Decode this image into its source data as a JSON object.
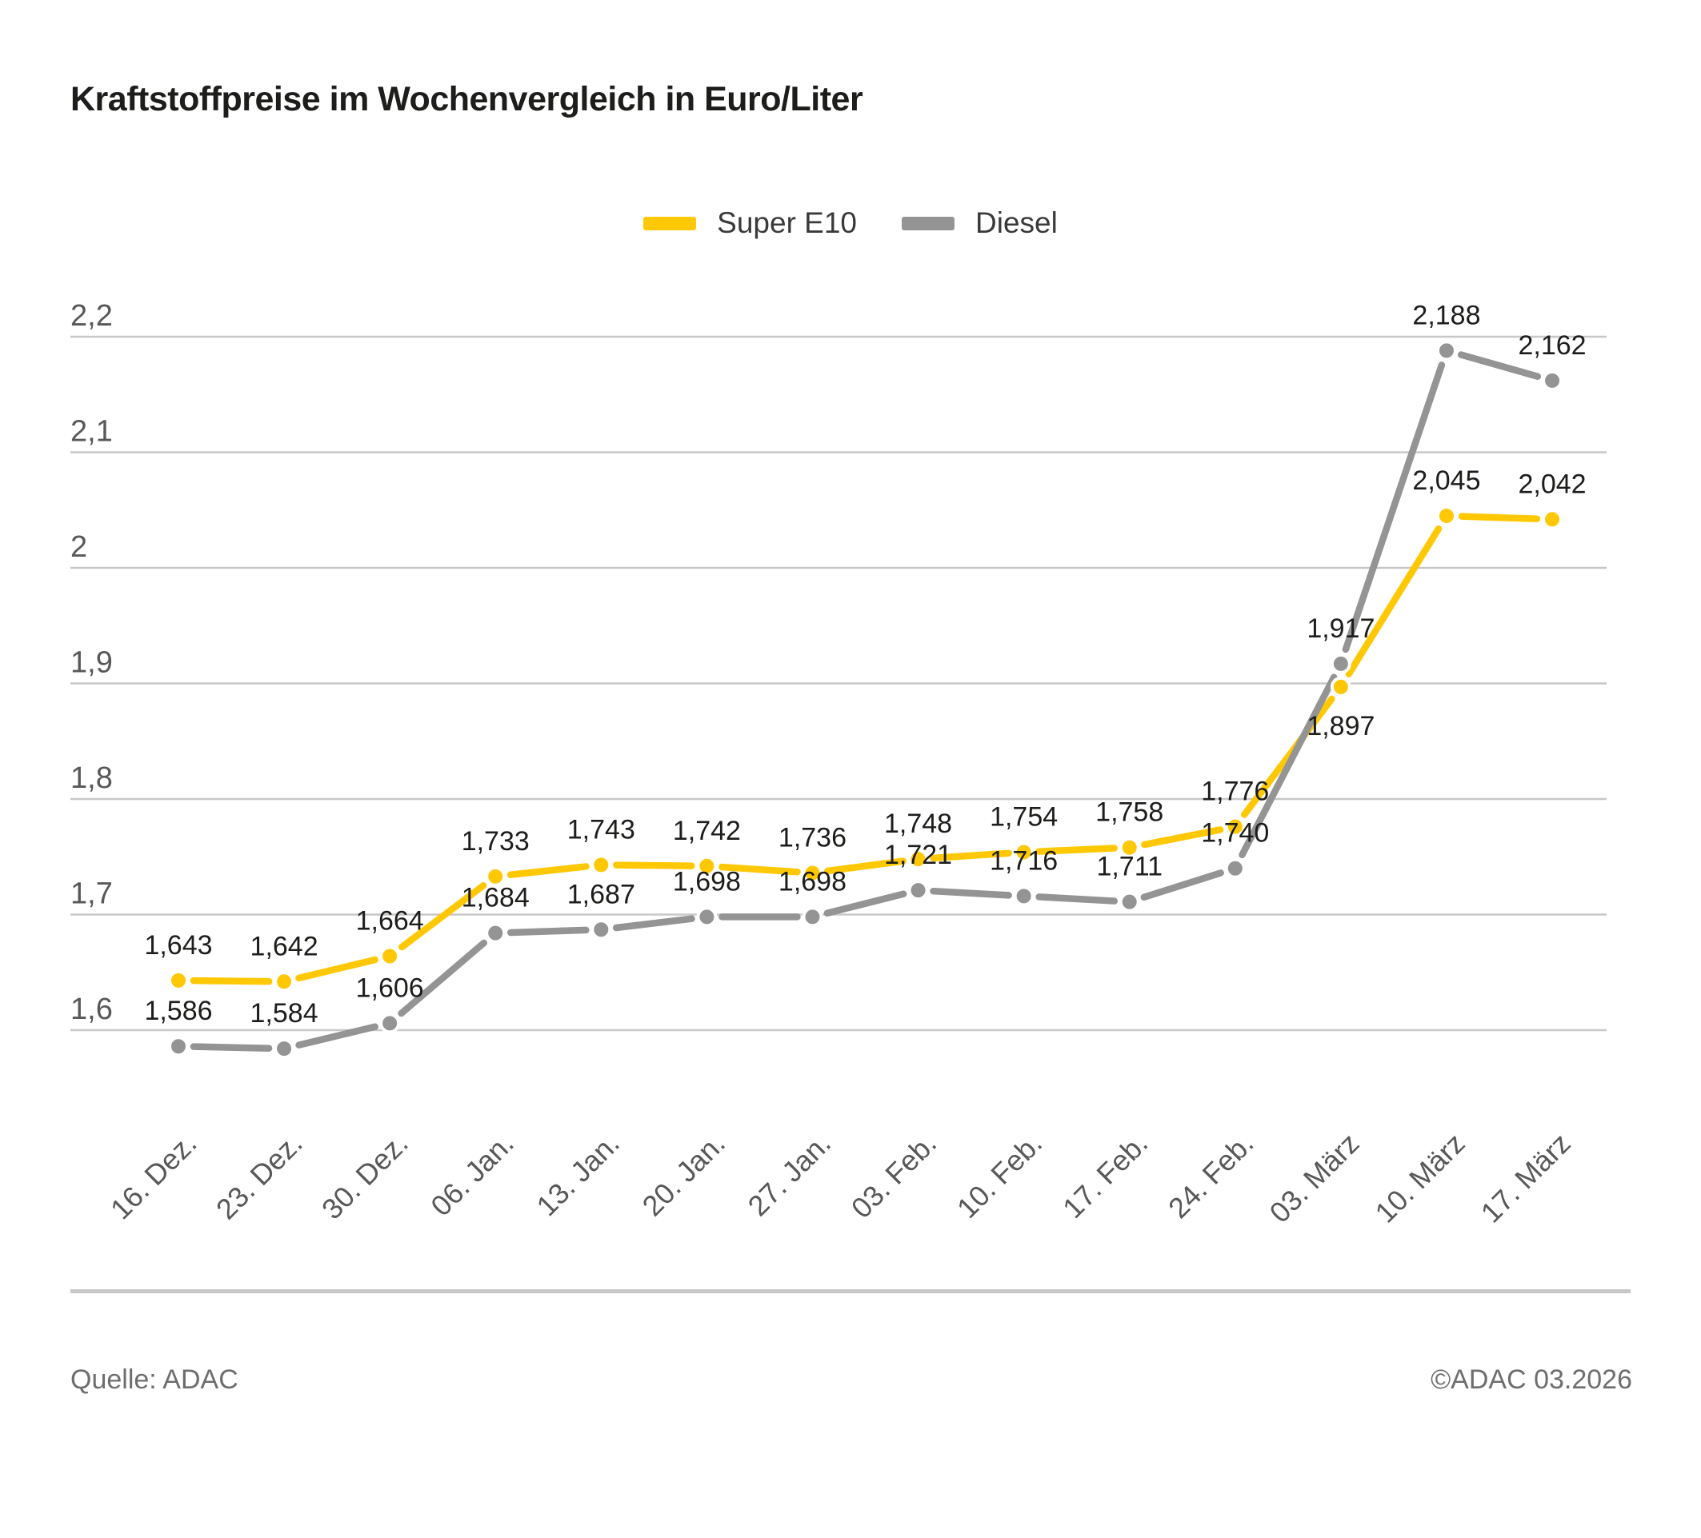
{
  "title": "Kraftstoffpreise im Wochenvergleich in Euro/Liter",
  "footer": {
    "source": "Quelle: ADAC",
    "copyright": "©ADAC 03.2026"
  },
  "chart_data": {
    "type": "line",
    "title": "Kraftstoffpreise im Wochenvergleich in Euro/Liter",
    "categories": [
      "16. Dez.",
      "23. Dez.",
      "30. Dez.",
      "06. Jan.",
      "13. Jan.",
      "20. Jan.",
      "27. Jan.",
      "03. Feb.",
      "10. Feb.",
      "17. Feb.",
      "24. Feb.",
      "03. März",
      "10. März",
      "17. März"
    ],
    "series": [
      {
        "name": "Super E10",
        "color": "#FFC805",
        "values": [
          1.643,
          1.642,
          1.664,
          1.733,
          1.743,
          1.742,
          1.736,
          1.748,
          1.754,
          1.758,
          1.776,
          1.897,
          2.045,
          2.042
        ],
        "labels": [
          "1,643",
          "1,642",
          "1,664",
          "1,733",
          "1,743",
          "1,742",
          "1,736",
          "1,748",
          "1,754",
          "1,758",
          "1,776",
          "1,897",
          "2,045",
          "2,042"
        ],
        "label_side": [
          "above",
          "above",
          "above",
          "above",
          "above",
          "above",
          "above",
          "above",
          "above",
          "above",
          "above",
          "below",
          "above",
          "above"
        ]
      },
      {
        "name": "Diesel",
        "color": "#949494",
        "values": [
          1.586,
          1.584,
          1.606,
          1.684,
          1.687,
          1.698,
          1.698,
          1.721,
          1.716,
          1.711,
          1.74,
          1.917,
          2.188,
          2.162
        ],
        "labels": [
          "1,586",
          "1,584",
          "1,606",
          "1,684",
          "1,687",
          "1,698",
          "1,698",
          "1,721",
          "1,716",
          "1,711",
          "1,740",
          "1,917",
          "2,188",
          "2,162"
        ],
        "label_side": [
          "above",
          "above",
          "above",
          "above",
          "above",
          "above",
          "above",
          "above",
          "above",
          "above",
          "above",
          "above",
          "above",
          "above"
        ]
      }
    ],
    "y_axis": {
      "ticks": [
        "2,2",
        "2,1",
        "2",
        "1,9",
        "1,8",
        "1,7",
        "1,6"
      ],
      "values": [
        2.2,
        2.1,
        2.0,
        1.9,
        1.8,
        1.7,
        1.6
      ]
    },
    "ylim": [
      1.55,
      2.25
    ],
    "xlabel": "",
    "ylabel": "Euro/Liter",
    "grid": true,
    "legend_position": "top",
    "colors": {
      "grid": "#c8c8c8",
      "axis_label": "#58585a",
      "data_label": "#1d1d1b"
    }
  }
}
